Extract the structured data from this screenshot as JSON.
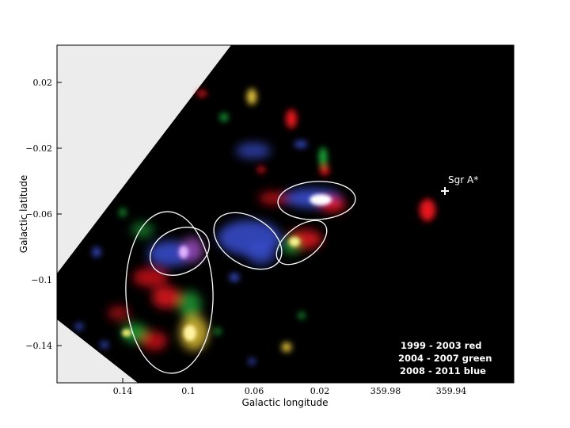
{
  "axes": {
    "xlabel": "Galactic longitude",
    "ylabel": "Galactic latitude",
    "xticks": [
      "0.14",
      "0.1",
      "0.06",
      "0.02",
      "359.98",
      "359.94"
    ],
    "yticks": [
      "0.02",
      "−0.02",
      "−0.06",
      "−0.1",
      "−0.14"
    ]
  },
  "marker": {
    "label": "Sgr A*"
  },
  "legend": {
    "lines": [
      "1999 - 2003   red",
      "2004 - 2007 green",
      "2008 - 2011  blue"
    ]
  },
  "colors": {
    "plot_background": "#000000",
    "masked_region": "#ececec",
    "red_epoch": "#e8141e",
    "green_epoch": "#1fae3a",
    "blue_epoch": "#3a4fd2",
    "ellipse": "#ffffff"
  }
}
